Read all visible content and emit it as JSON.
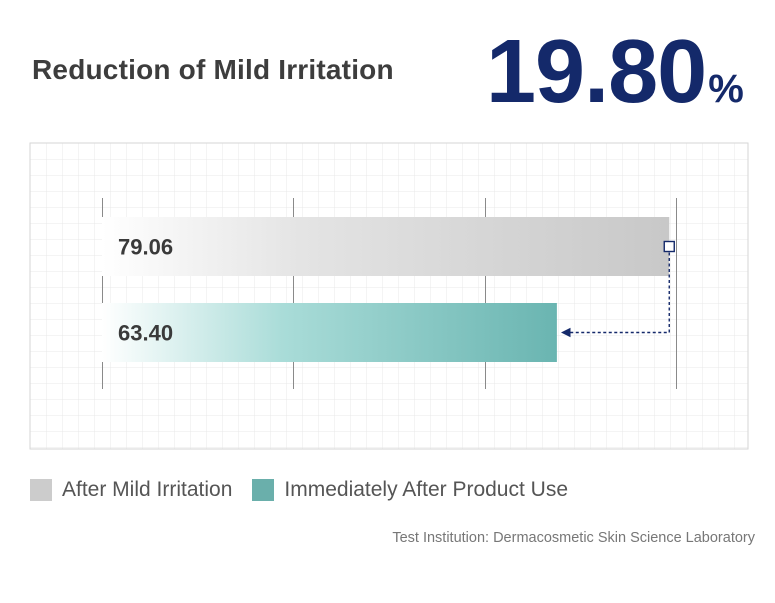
{
  "headline": "Reduction of Mild Irritation",
  "highlight": {
    "value": "19.80",
    "unit": "%"
  },
  "chart_data": {
    "type": "bar",
    "orientation": "horizontal",
    "categories": [
      "After Mild Irritation",
      "Immediately After Product Use"
    ],
    "values": [
      79.06,
      63.4
    ],
    "value_labels": [
      "79.06",
      "63.40"
    ],
    "colors": [
      "#c8c8c8",
      "#6ab5b1"
    ],
    "xlim": [
      0,
      80
    ],
    "grid": true,
    "legend_position": "bottom-left",
    "annotation": "arrow from end of first bar to end of second bar"
  },
  "legend": [
    {
      "label": "After Mild Irritation",
      "color": "#cccccc"
    },
    {
      "label": "Immediately After Product Use",
      "color": "#6aafab"
    }
  ],
  "source": "Test Institution: Dermacosmetic Skin Science Laboratory"
}
